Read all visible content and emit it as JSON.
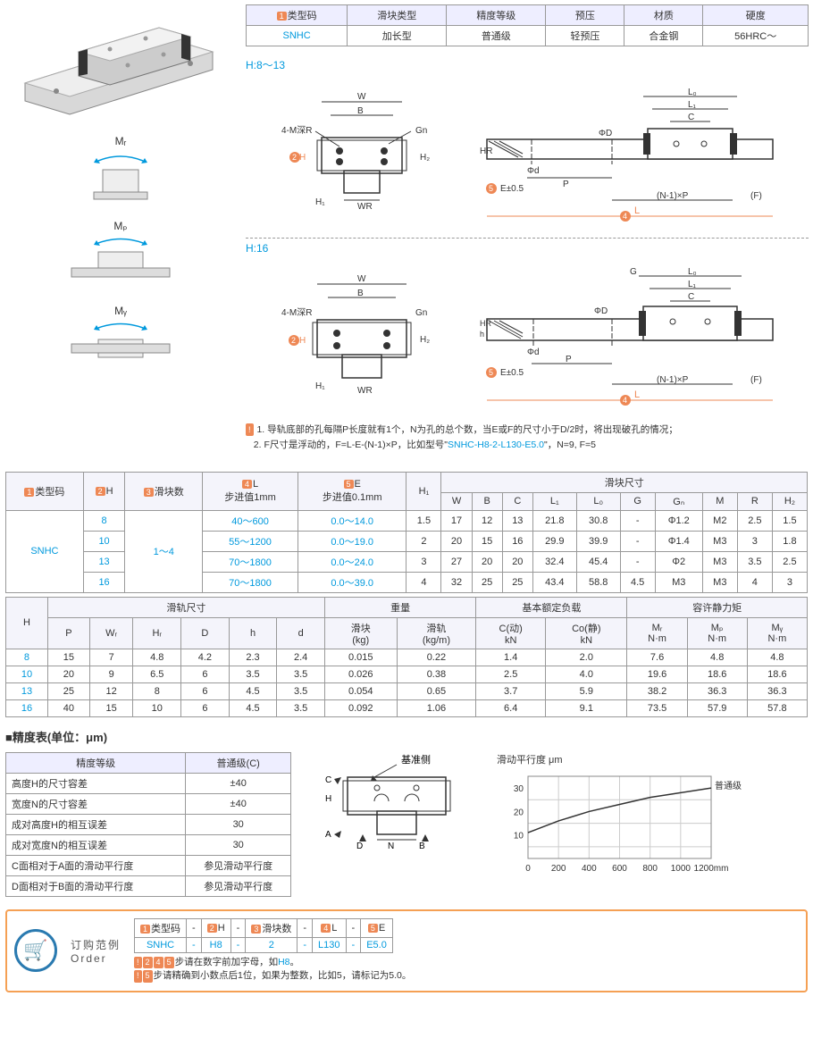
{
  "topTable": {
    "headers": [
      "类型码",
      "滑块类型",
      "精度等级",
      "预压",
      "材质",
      "硬度"
    ],
    "row": [
      "SNHC",
      "加长型",
      "普通级",
      "轻预压",
      "合金钢",
      "56HRC～"
    ],
    "badge": "1"
  },
  "momentLabels": {
    "mr": "Mᵣ",
    "mp": "Mₚ",
    "my": "Mᵧ"
  },
  "drawingLabels": {
    "h813": "H:8～13",
    "h16": "H:16",
    "e05": "E±0.5",
    "l": "L",
    "np": "(N-1)×P",
    "f": "(F)",
    "w": "W",
    "b": "B",
    "gn": "Gn",
    "g": "G",
    "l0": "L₀",
    "l1": "L₁",
    "c": "C",
    "phiD": "ΦD",
    "phid": "Φd",
    "p": "P",
    "h": "h",
    "hr": "HR",
    "h1": "H₁",
    "h2": "H₂",
    "wr": "WR",
    "fourM": "4-M深R",
    "badge2": "2",
    "badge4": "4",
    "badge5": "5",
    "hLabel": "H"
  },
  "notes": {
    "n1": "1. 导轨底部的孔每隔P长度就有1个，N为孔的总个数，当E或F的尺寸小于D/2时，将出现破孔的情况；",
    "n2": "2. F尺寸是浮动的，F=L-E-(N-1)×P，比如型号\"",
    "n2code": "SNHC-H8-2-L130-E5.0",
    "n2end": "\"，N=9, F=5"
  },
  "specTable1": {
    "groupHeaders": [
      "类型码",
      "H",
      "滑块数",
      "L\n步进值1mm",
      "E\n步进值0.1mm",
      "H₁",
      "滑块尺寸"
    ],
    "subHeaders": [
      "W",
      "B",
      "C",
      "L₁",
      "L₀",
      "G",
      "Gₙ",
      "M",
      "R",
      "H₂"
    ],
    "badges": [
      "1",
      "2",
      "3",
      "4",
      "5"
    ],
    "typeCode": "SNHC",
    "sliderCount": "1～4",
    "rows": [
      {
        "h": "8",
        "l": "40～600",
        "e": "0.0～14.0",
        "h1": "1.5",
        "w": "17",
        "b": "12",
        "c": "13",
        "l1": "21.8",
        "l0": "30.8",
        "g": "-",
        "gn": "Φ1.2",
        "m": "M2",
        "r": "2.5",
        "h2": "1.5"
      },
      {
        "h": "10",
        "l": "55～1200",
        "e": "0.0～19.0",
        "h1": "2",
        "w": "20",
        "b": "15",
        "c": "16",
        "l1": "29.9",
        "l0": "39.9",
        "g": "-",
        "gn": "Φ1.4",
        "m": "M3",
        "r": "3",
        "h2": "1.8"
      },
      {
        "h": "13",
        "l": "70～1800",
        "e": "0.0～24.0",
        "h1": "3",
        "w": "27",
        "b": "20",
        "c": "20",
        "l1": "32.4",
        "l0": "45.4",
        "g": "-",
        "gn": "Φ2",
        "m": "M3",
        "r": "3.5",
        "h2": "2.5"
      },
      {
        "h": "16",
        "l": "70～1800",
        "e": "0.0～39.0",
        "h1": "4",
        "w": "32",
        "b": "25",
        "c": "25",
        "l1": "43.4",
        "l0": "58.8",
        "g": "4.5",
        "gn": "M3",
        "m": "M3",
        "r": "4",
        "h2": "3"
      }
    ]
  },
  "specTable2": {
    "groupHeaders": [
      "H",
      "滑轨尺寸",
      "重量",
      "基本额定负载",
      "容许静力矩"
    ],
    "subHeaders": [
      "P",
      "Wᵣ",
      "Hᵣ",
      "D",
      "h",
      "d",
      "滑块\n(kg)",
      "滑轨\n(kg/m)",
      "C(动)\nkN",
      "Co(静)\nkN",
      "Mᵣ\nN·m",
      "Mₚ\nN·m",
      "Mᵧ\nN·m"
    ],
    "rows": [
      {
        "h": "8",
        "p": "15",
        "wr": "7",
        "hr": "4.8",
        "d": "4.2",
        "hh": "2.3",
        "dd": "2.4",
        "wk": "0.015",
        "wr2": "0.22",
        "cd": "1.4",
        "co": "2.0",
        "mr": "7.6",
        "mp": "4.8",
        "my": "4.8"
      },
      {
        "h": "10",
        "p": "20",
        "wr": "9",
        "hr": "6.5",
        "d": "6",
        "hh": "3.5",
        "dd": "3.5",
        "wk": "0.026",
        "wr2": "0.38",
        "cd": "2.5",
        "co": "4.0",
        "mr": "19.6",
        "mp": "18.6",
        "my": "18.6"
      },
      {
        "h": "13",
        "p": "25",
        "wr": "12",
        "hr": "8",
        "d": "6",
        "hh": "4.5",
        "dd": "3.5",
        "wk": "0.054",
        "wr2": "0.65",
        "cd": "3.7",
        "co": "5.9",
        "mr": "38.2",
        "mp": "36.3",
        "my": "36.3"
      },
      {
        "h": "16",
        "p": "40",
        "wr": "15",
        "hr": "10",
        "d": "6",
        "hh": "4.5",
        "dd": "3.5",
        "wk": "0.092",
        "wr2": "1.06",
        "cd": "6.4",
        "co": "9.1",
        "mr": "73.5",
        "mp": "57.9",
        "my": "57.8"
      }
    ]
  },
  "precisionTitle": "■精度表(单位：μm)",
  "precisionTable": {
    "h1": "精度等级",
    "h2": "普通级(C)",
    "rows": [
      [
        "高度H的尺寸容差",
        "±40"
      ],
      [
        "宽度N的尺寸容差",
        "±40"
      ],
      [
        "成对高度H的相互误差",
        "30"
      ],
      [
        "成对宽度N的相互误差",
        "30"
      ],
      [
        "C面相对于A面的滑动平行度",
        "参见滑动平行度"
      ],
      [
        "D面相对于B面的滑动平行度",
        "参见滑动平行度"
      ]
    ]
  },
  "crossLabels": {
    "base": "基准侧",
    "a": "A",
    "b": "B",
    "c": "C",
    "d": "D",
    "h": "H",
    "n": "N"
  },
  "chart": {
    "title": "滑动平行度 μm",
    "series": "普通级",
    "yticks": [
      10,
      20,
      30
    ],
    "xticks": [
      0,
      200,
      400,
      600,
      800,
      1000,
      "1200mm"
    ],
    "points": [
      [
        0,
        11
      ],
      [
        200,
        16
      ],
      [
        400,
        20
      ],
      [
        600,
        23
      ],
      [
        800,
        26
      ],
      [
        1000,
        28
      ],
      [
        1200,
        30
      ]
    ],
    "xmax": 1200,
    "ymax": 35,
    "grid_color": "#ccc",
    "line_color": "#333",
    "bg": "#fff"
  },
  "order": {
    "title1": "订购范例",
    "title2": "Order",
    "headers": [
      "类型码",
      "",
      "H",
      "",
      "滑块数",
      "",
      "L",
      "",
      "E"
    ],
    "badges": [
      "1",
      "2",
      "3",
      "4",
      "5"
    ],
    "dash": "-",
    "values": [
      "SNHC",
      "-",
      "H8",
      "-",
      "2",
      "-",
      "L130",
      "-",
      "E5.0"
    ],
    "note1pre": "245",
    "note1": "步请在数字前加字母，如",
    "note1code": "H8",
    "note1end": "。",
    "note2pre": "5",
    "note2": "步请精确到小数点后1位，如果为整数，比如5，请标记为5.0。"
  }
}
